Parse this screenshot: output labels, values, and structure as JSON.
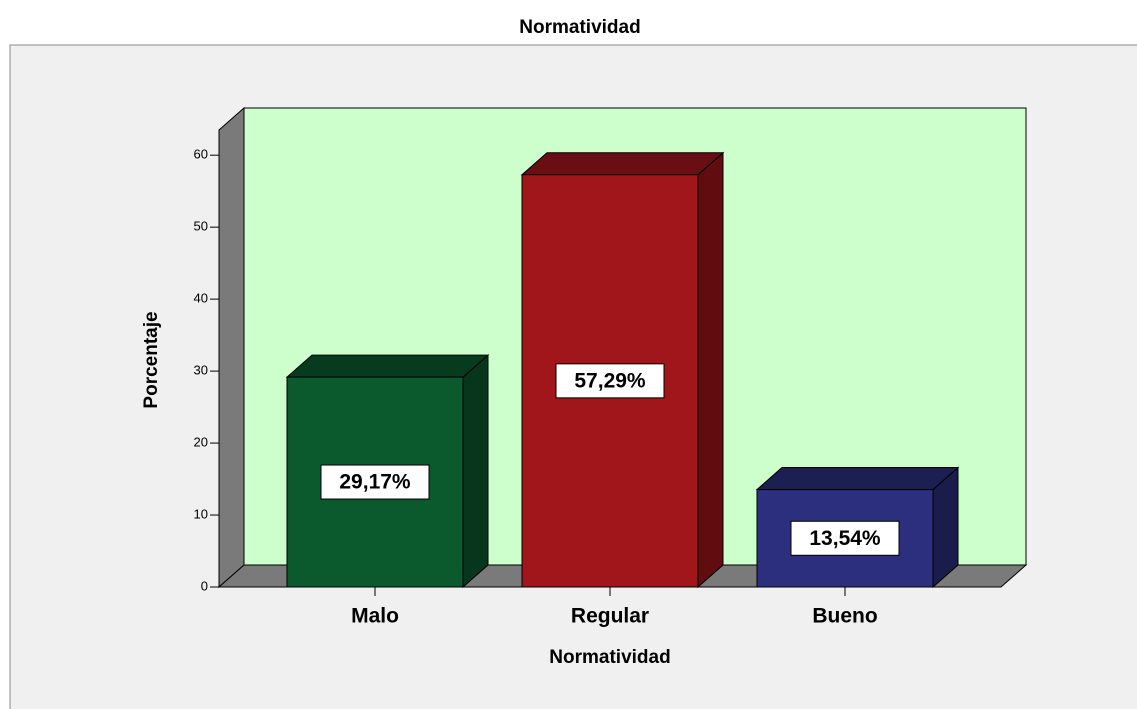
{
  "chart_data": {
    "type": "bar3d",
    "title": "Normatividad",
    "x_label": "Normatividad",
    "y_label": "Porcentaje",
    "categories": [
      "Malo",
      "Regular",
      "Bueno"
    ],
    "values": [
      29.17,
      57.29,
      13.54
    ],
    "value_labels": [
      "29,17%",
      "57,29%",
      "13,54%"
    ],
    "colors": [
      "#0b5a2e",
      "#a1161b",
      "#2b2f7e"
    ],
    "ylim": [
      0,
      63.5
    ],
    "yticks": [
      0,
      10,
      20,
      30,
      40,
      50,
      60
    ]
  }
}
